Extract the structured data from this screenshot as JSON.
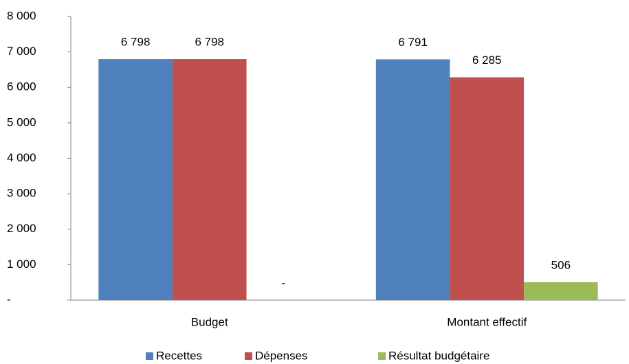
{
  "chart_data": {
    "type": "bar",
    "categories": [
      "Budget",
      "Montant effectif"
    ],
    "series": [
      {
        "name": "Recettes",
        "color": "#4f81bd",
        "values": [
          6798,
          6791
        ],
        "value_labels": [
          "6 798",
          "6 791"
        ]
      },
      {
        "name": "Dépenses",
        "color": "#c0504d",
        "values": [
          6798,
          6285
        ],
        "value_labels": [
          "6 798",
          "6 285"
        ]
      },
      {
        "name": "Résultat budgétaire",
        "color": "#9bbb59",
        "values": [
          0,
          506
        ],
        "value_labels": [
          "-",
          "506"
        ]
      }
    ],
    "ylim": [
      0,
      8000
    ],
    "yticks": [
      {
        "value": 0,
        "label": "-"
      },
      {
        "value": 1000,
        "label": "1 000"
      },
      {
        "value": 2000,
        "label": "2 000"
      },
      {
        "value": 3000,
        "label": "3 000"
      },
      {
        "value": 4000,
        "label": "4 000"
      },
      {
        "value": 5000,
        "label": "5 000"
      },
      {
        "value": 6000,
        "label": "6 000"
      },
      {
        "value": 7000,
        "label": "7 000"
      },
      {
        "value": 8000,
        "label": "8 000"
      }
    ],
    "grid": false,
    "legend": "bottom"
  }
}
